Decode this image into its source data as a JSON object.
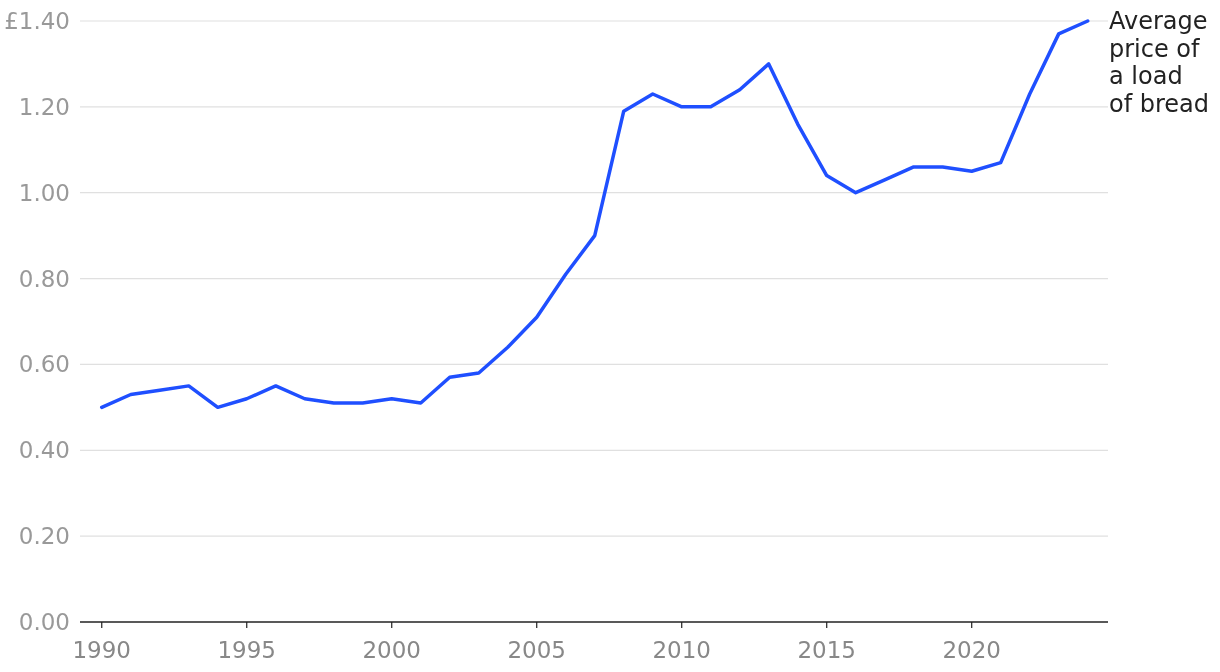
{
  "chart_data": {
    "type": "line",
    "x": [
      1990,
      1991,
      1992,
      1993,
      1994,
      1995,
      1996,
      1997,
      1998,
      1999,
      2000,
      2001,
      2002,
      2003,
      2004,
      2005,
      2006,
      2007,
      2008,
      2009,
      2010,
      2011,
      2012,
      2013,
      2014,
      2015,
      2016,
      2017,
      2018,
      2019,
      2020,
      2021,
      2022,
      2023,
      2024
    ],
    "series": [
      {
        "name": "Average price of a load of bread",
        "color": "#1f4fff",
        "values": [
          0.5,
          0.53,
          0.54,
          0.55,
          0.5,
          0.52,
          0.55,
          0.52,
          0.51,
          0.51,
          0.52,
          0.51,
          0.57,
          0.58,
          0.64,
          0.71,
          0.81,
          0.9,
          1.19,
          1.23,
          1.2,
          1.2,
          1.24,
          1.3,
          1.16,
          1.04,
          1.0,
          1.03,
          1.06,
          1.06,
          1.05,
          1.07,
          1.23,
          1.37,
          1.4
        ]
      }
    ],
    "xlim": [
      1989.25,
      2024.7
    ],
    "xticks": [
      1990,
      1995,
      2000,
      2005,
      2010,
      2015,
      2020
    ],
    "ylim": [
      0,
      1.4
    ],
    "yticks": [
      {
        "value": 0,
        "label": "0.00"
      },
      {
        "value": 0.2,
        "label": "0.20"
      },
      {
        "value": 0.4,
        "label": "0.40"
      },
      {
        "value": 0.6,
        "label": "0.60"
      },
      {
        "value": 0.8,
        "label": "0.80"
      },
      {
        "value": 1.0,
        "label": "1.00"
      },
      {
        "value": 1.2,
        "label": "1.20"
      },
      {
        "value": 1.4,
        "label": "£1.40"
      }
    ],
    "grid": "y",
    "legend": false,
    "marker": "none",
    "line_style": "solid"
  }
}
